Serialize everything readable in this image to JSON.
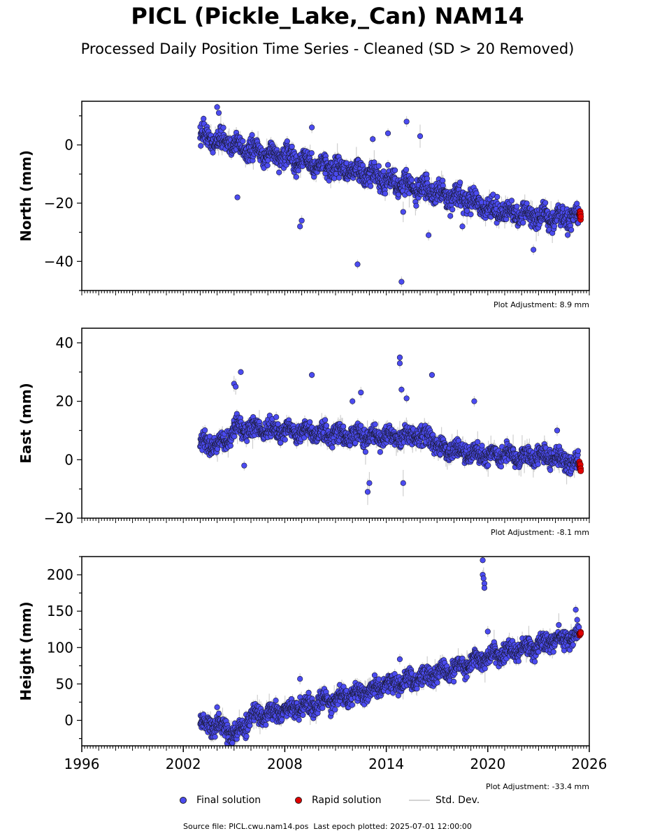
{
  "title": "PICL (Pickle_Lake,_Can) NAM14",
  "subtitle": "Processed Daily Position Time Series - Cleaned (SD > 20 Removed)",
  "legend": {
    "final_label": "Final solution",
    "rapid_label": "Rapid solution",
    "std_label": "Std. Dev."
  },
  "footer": {
    "source": "Source file: PICL.cwu.nam14.pos",
    "last_epoch": "Last epoch plotted: 2025-07-01 12:00:00"
  },
  "colors": {
    "final": "#4b4bf0",
    "final_edge": "#1a1a33",
    "rapid": "#e00000",
    "std": "#cfcfcf"
  },
  "chart_data": [
    {
      "type": "scatter",
      "ylabel": "North (mm)",
      "xlim": [
        1996,
        2026
      ],
      "ylim": [
        -50,
        15
      ],
      "yticks": [
        -40,
        -20,
        0
      ],
      "adjustment": "Plot Adjustment: 8.9 mm",
      "series": [
        {
          "name": "Final solution",
          "start": 2003.0,
          "end": 2025.4,
          "trend": [
            [
              2003.0,
              3
            ],
            [
              2004.5,
              1
            ],
            [
              2006,
              -2
            ],
            [
              2008,
              -4
            ],
            [
              2010,
              -7
            ],
            [
              2012,
              -9
            ],
            [
              2014,
              -12
            ],
            [
              2016,
              -15
            ],
            [
              2018,
              -18
            ],
            [
              2019.6,
              -20
            ],
            [
              2020.0,
              -22
            ],
            [
              2022,
              -24
            ],
            [
              2024,
              -25
            ],
            [
              2025.4,
              -25
            ]
          ],
          "noise": 2.5,
          "outliers": [
            [
              2003.2,
              9
            ],
            [
              2004.0,
              13
            ],
            [
              2004.1,
              11
            ],
            [
              2005.2,
              -18
            ],
            [
              2008.9,
              -28
            ],
            [
              2009.0,
              -26
            ],
            [
              2009.6,
              6
            ],
            [
              2012.3,
              -41
            ],
            [
              2013.2,
              2
            ],
            [
              2014.1,
              4
            ],
            [
              2014.9,
              -47
            ],
            [
              2015.0,
              -23
            ],
            [
              2015.2,
              8
            ],
            [
              2016.0,
              3
            ],
            [
              2016.5,
              -31
            ],
            [
              2018.5,
              -28
            ],
            [
              2022.7,
              -36
            ]
          ]
        },
        {
          "name": "Rapid solution",
          "start": 2025.42,
          "end": 2025.5,
          "values": [
            -23,
            -25
          ]
        }
      ]
    },
    {
      "type": "scatter",
      "ylabel": "East (mm)",
      "xlim": [
        1996,
        2026
      ],
      "ylim": [
        -20,
        45
      ],
      "yticks": [
        -20,
        0,
        20,
        40
      ],
      "adjustment": "Plot Adjustment: -8.1 mm",
      "series": [
        {
          "name": "Final solution",
          "start": 2003.0,
          "end": 2025.4,
          "trend": [
            [
              2003.0,
              6
            ],
            [
              2004.5,
              5
            ],
            [
              2005.0,
              11
            ],
            [
              2008,
              10
            ],
            [
              2010,
              9
            ],
            [
              2012,
              8
            ],
            [
              2014,
              8
            ],
            [
              2016,
              8
            ],
            [
              2016.9,
              7
            ],
            [
              2017.1,
              4
            ],
            [
              2019,
              2
            ],
            [
              2022,
              1
            ],
            [
              2024,
              1
            ],
            [
              2025.4,
              -2
            ]
          ],
          "noise": 2.2,
          "outliers": [
            [
              2005.0,
              26
            ],
            [
              2005.1,
              25
            ],
            [
              2005.4,
              30
            ],
            [
              2009.6,
              29
            ],
            [
              2012.0,
              20
            ],
            [
              2012.5,
              23
            ],
            [
              2012.9,
              -11
            ],
            [
              2013.0,
              -8
            ],
            [
              2014.8,
              35
            ],
            [
              2014.8,
              33
            ],
            [
              2014.9,
              24
            ],
            [
              2015.2,
              21
            ],
            [
              2016.7,
              29
            ],
            [
              2019.2,
              20
            ],
            [
              2024.1,
              10
            ],
            [
              2005.6,
              -2
            ],
            [
              2015.0,
              -8
            ]
          ]
        },
        {
          "name": "Rapid solution",
          "start": 2025.42,
          "end": 2025.5,
          "values": [
            -2,
            -3
          ]
        }
      ]
    },
    {
      "type": "scatter",
      "ylabel": "Height (mm)",
      "xlim": [
        1996,
        2026
      ],
      "ylim": [
        -35,
        225
      ],
      "yticks": [
        0,
        50,
        100,
        150,
        200
      ],
      "adjustment": "Plot Adjustment: -33.4 mm",
      "series": [
        {
          "name": "Final solution",
          "start": 2003.0,
          "end": 2025.4,
          "trend": [
            [
              2003.0,
              -5
            ],
            [
              2004.5,
              -10
            ],
            [
              2005.0,
              -22
            ],
            [
              2006,
              5
            ],
            [
              2008,
              15
            ],
            [
              2010,
              22
            ],
            [
              2012,
              35
            ],
            [
              2014,
              48
            ],
            [
              2016,
              58
            ],
            [
              2018,
              72
            ],
            [
              2020,
              88
            ],
            [
              2022,
              98
            ],
            [
              2024,
              110
            ],
            [
              2025.4,
              117
            ]
          ],
          "noise": 9,
          "outliers": [
            [
              2019.7,
              220
            ],
            [
              2019.7,
              200
            ],
            [
              2019.75,
              195
            ],
            [
              2019.8,
              188
            ],
            [
              2019.8,
              182
            ],
            [
              2020.0,
              122
            ],
            [
              2008.9,
              57
            ],
            [
              2014.8,
              84
            ],
            [
              2025.2,
              152
            ],
            [
              2004.0,
              18
            ],
            [
              2004.9,
              -31
            ]
          ]
        },
        {
          "name": "Rapid solution",
          "start": 2025.42,
          "end": 2025.5,
          "values": [
            118,
            120
          ]
        }
      ],
      "xticks": [
        1996,
        2002,
        2008,
        2014,
        2020,
        2026
      ]
    }
  ]
}
